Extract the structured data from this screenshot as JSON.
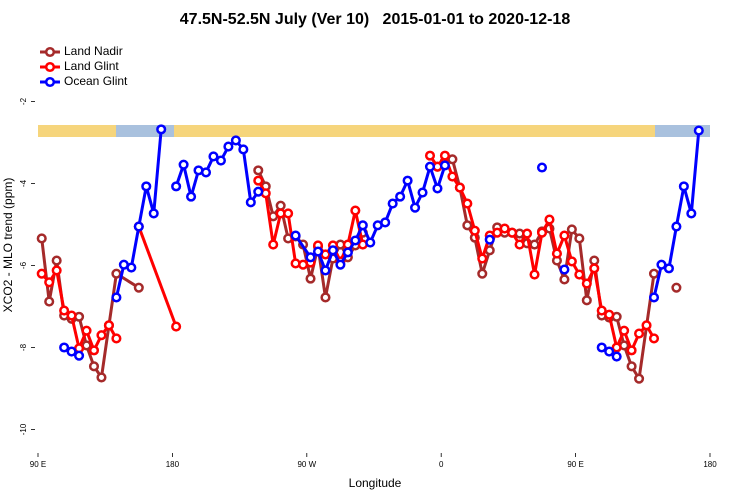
{
  "chart_data": {
    "type": "line",
    "title": "47.5N-52.5N July (Ver 10)   2015-01-01 to 2020-12-18",
    "x_label": "Longitude",
    "y_label": "XCO2 - MLO trend (ppm)",
    "xlim": [
      90,
      540
    ],
    "xticks": [
      {
        "value": 90,
        "label": "90 E"
      },
      180,
      {
        "value": 270,
        "label": "90 W"
      },
      {
        "value": 360,
        "label": "0"
      },
      {
        "value": 450,
        "label": "90 E"
      },
      {
        "value": 540,
        "label": "180"
      }
    ],
    "ylim": [
      -10.5,
      -0.5
    ],
    "yticks": [
      -2,
      -4,
      -6,
      -8,
      -10
    ],
    "legend": "top-left",
    "markers": true,
    "series": [
      {
        "name": "Land Nadir",
        "color": "#a52a2a",
        "x": [
          92.5,
          97.5,
          102.5,
          107.5,
          112.5,
          117.5,
          122.5,
          127.5,
          132.5,
          137.5,
          142.5,
          157.5,
          162.5,
          237.5,
          242.5,
          247.5,
          252.5,
          257.5,
          262.5,
          267.5,
          272.5,
          277.5,
          282.5,
          287.5,
          292.5,
          297.5,
          302.5,
          307.5,
          312.5,
          357.5,
          362.5,
          367.5,
          372.5,
          377.5,
          382.5,
          387.5,
          392.5,
          397.5,
          402.5,
          407.5,
          412.5,
          417.5,
          422.5,
          427.5,
          432.5,
          437.5,
          442.5,
          447.5,
          452.5,
          457.5,
          462.5,
          467.5,
          472.5,
          477.5,
          482.5,
          487.5,
          492.5,
          502.5,
          507.5,
          517.5
        ],
        "values": [
          -5.34,
          -6.88,
          -5.88,
          -7.22,
          -7.3,
          -7.25,
          -7.95,
          -8.46,
          -8.73,
          -7.46,
          -6.2,
          -6.54,
          null,
          -3.68,
          -4.07,
          -4.8,
          -4.54,
          -5.34,
          -5.29,
          -5.49,
          -6.32,
          -5.54,
          -6.78,
          -5.83,
          -5.49,
          -5.8,
          -5.51,
          -5.2,
          null,
          -3.59,
          -3.46,
          -3.41,
          -4.1,
          -5.02,
          -5.32,
          -6.2,
          -5.63,
          -5.07,
          -5.2,
          -5.2,
          -5.22,
          -5.46,
          -5.49,
          -5.17,
          -5.1,
          -5.88,
          -6.34,
          -5.12,
          -5.34,
          -6.85,
          -5.88,
          -7.22,
          -7.27,
          -7.25,
          -7.95,
          -8.46,
          -8.76,
          -6.2,
          null,
          -6.54
        ]
      },
      {
        "name": "Land Glint",
        "color": "#ff0000",
        "x": [
          92.5,
          97.5,
          102.5,
          107.5,
          112.5,
          117.5,
          122.5,
          127.5,
          132.5,
          137.5,
          142.5,
          147.5,
          157.5,
          182.5,
          187.5,
          237.5,
          242.5,
          247.5,
          252.5,
          257.5,
          262.5,
          267.5,
          272.5,
          277.5,
          282.5,
          287.5,
          292.5,
          297.5,
          302.5,
          307.5,
          312.5,
          352.5,
          357.5,
          362.5,
          367.5,
          372.5,
          377.5,
          382.5,
          387.5,
          392.5,
          397.5,
          402.5,
          407.5,
          412.5,
          417.5,
          422.5,
          427.5,
          432.5,
          437.5,
          442.5,
          447.5,
          452.5,
          457.5,
          462.5,
          467.5,
          472.5,
          477.5,
          482.5,
          487.5,
          492.5,
          497.5,
          502.5
        ],
        "values": [
          -6.2,
          -6.41,
          -6.12,
          -7.1,
          -7.22,
          -8.02,
          -7.59,
          -8.07,
          -7.7,
          -7.46,
          -7.78,
          null,
          -5.05,
          -7.49,
          null,
          -3.93,
          -4.24,
          -5.49,
          -4.73,
          -4.73,
          -5.95,
          -5.98,
          -5.93,
          -5.51,
          -5.73,
          -5.51,
          -5.9,
          -5.49,
          -4.66,
          -5.49,
          null,
          -3.32,
          -3.59,
          -3.32,
          -3.83,
          -4.1,
          -4.49,
          -5.15,
          -5.83,
          -5.27,
          -5.2,
          -5.1,
          -5.2,
          -5.49,
          -5.22,
          -6.22,
          -5.2,
          -4.88,
          -5.71,
          -5.27,
          -5.9,
          -6.22,
          -6.44,
          -6.07,
          -7.1,
          -7.2,
          -8.0,
          -7.59,
          -8.07,
          -7.66,
          -7.46,
          -7.78
        ]
      },
      {
        "name": "Ocean Glint",
        "color": "#0000ff",
        "x": [
          107.5,
          112.5,
          117.5,
          122.5,
          142.5,
          147.5,
          152.5,
          157.5,
          162.5,
          167.5,
          172.5,
          177.5,
          182.5,
          187.5,
          192.5,
          197.5,
          202.5,
          207.5,
          212.5,
          217.5,
          222.5,
          227.5,
          232.5,
          237.5,
          242.5,
          262.5,
          272.5,
          277.5,
          282.5,
          287.5,
          292.5,
          297.5,
          302.5,
          307.5,
          312.5,
          317.5,
          322.5,
          327.5,
          332.5,
          337.5,
          342.5,
          347.5,
          352.5,
          357.5,
          362.5,
          367.5,
          392.5,
          397.5,
          427.5,
          432.5,
          442.5,
          447.5,
          467.5,
          472.5,
          477.5,
          482.5,
          502.5,
          507.5,
          512.5,
          517.5,
          522.5,
          527.5,
          532.5
        ],
        "values": [
          -8.0,
          -8.1,
          -8.2,
          null,
          -6.78,
          -5.98,
          -6.05,
          -5.05,
          -4.07,
          -4.73,
          -2.68,
          null,
          -4.07,
          -3.54,
          -4.32,
          -3.68,
          -3.73,
          -3.34,
          -3.44,
          -3.1,
          -2.95,
          -3.17,
          -4.46,
          -4.2,
          null,
          -5.27,
          -5.8,
          -5.66,
          -6.12,
          -5.63,
          -5.98,
          -5.68,
          -5.39,
          -5.02,
          -5.44,
          -5.02,
          -4.95,
          -4.49,
          -4.32,
          -3.93,
          -4.59,
          -4.22,
          -3.59,
          -4.12,
          -3.56,
          null,
          -5.37,
          null,
          -3.61,
          null,
          -6.1,
          null,
          -8.0,
          -8.1,
          -8.22,
          null,
          -6.78,
          -5.98,
          -6.07,
          -5.05,
          -4.07,
          -4.73,
          -2.71
        ]
      }
    ]
  }
}
